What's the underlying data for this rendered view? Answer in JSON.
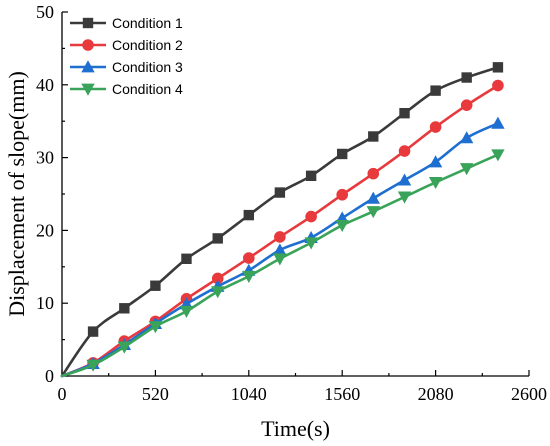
{
  "chart_data": {
    "type": "line",
    "title": "",
    "xlabel": "Time(s)",
    "ylabel": "Displacement of slope(mm)",
    "xlim": [
      0,
      2600
    ],
    "ylim": [
      0,
      50
    ],
    "xticks": [
      0,
      520,
      1040,
      1560,
      2080,
      2600
    ],
    "yticks": [
      0,
      10,
      20,
      30,
      40,
      50
    ],
    "legend_position": "top-left",
    "grid": false,
    "x": [
      0,
      173,
      347,
      520,
      693,
      867,
      1040,
      1213,
      1387,
      1560,
      1733,
      1907,
      2080,
      2253,
      2427
    ],
    "series": [
      {
        "name": "Condition 1",
        "color": "#3a3a3a",
        "marker": "square",
        "values": [
          0,
          6.1,
          9.3,
          12.4,
          16.1,
          18.9,
          22.1,
          25.2,
          27.5,
          30.5,
          32.9,
          36.1,
          39.2,
          41.0,
          42.4
        ]
      },
      {
        "name": "Condition 2",
        "color": "#e8393c",
        "marker": "circle",
        "values": [
          0,
          1.8,
          4.8,
          7.5,
          10.6,
          13.4,
          16.2,
          19.1,
          21.9,
          24.9,
          27.8,
          30.9,
          34.2,
          37.2,
          39.9
        ]
      },
      {
        "name": "Condition 3",
        "color": "#1f6fd1",
        "marker": "triangle-up",
        "values": [
          0,
          1.7,
          4.3,
          7.2,
          9.9,
          12.3,
          14.5,
          17.3,
          19.0,
          21.7,
          24.4,
          26.9,
          29.4,
          32.7,
          34.7
        ]
      },
      {
        "name": "Condition 4",
        "color": "#3aa35a",
        "marker": "triangle-down",
        "values": [
          0,
          1.5,
          4.0,
          6.8,
          8.9,
          11.6,
          13.7,
          16.1,
          18.3,
          20.7,
          22.6,
          24.6,
          26.6,
          28.5,
          30.4
        ]
      }
    ]
  }
}
